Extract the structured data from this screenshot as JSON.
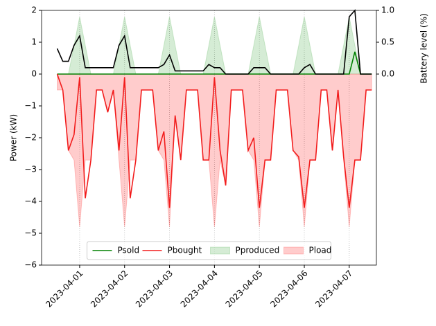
{
  "chart_data": {
    "type": "line",
    "ylabel": "Power (kW)",
    "y2label": "Battery level (%)",
    "x": [
      "2023-03-31T12:00",
      "2023-03-31T15:00",
      "2023-03-31T18:00",
      "2023-03-31T21:00",
      "2023-04-01T00:00",
      "2023-04-01T03:00",
      "2023-04-01T06:00",
      "2023-04-01T09:00",
      "2023-04-01T12:00",
      "2023-04-01T15:00",
      "2023-04-01T18:00",
      "2023-04-01T21:00",
      "2023-04-02T00:00",
      "2023-04-02T03:00",
      "2023-04-02T06:00",
      "2023-04-02T09:00",
      "2023-04-02T12:00",
      "2023-04-02T15:00",
      "2023-04-02T18:00",
      "2023-04-02T21:00",
      "2023-04-03T00:00",
      "2023-04-03T03:00",
      "2023-04-03T06:00",
      "2023-04-03T09:00",
      "2023-04-03T12:00",
      "2023-04-03T15:00",
      "2023-04-03T18:00",
      "2023-04-03T21:00",
      "2023-04-04T00:00",
      "2023-04-04T03:00",
      "2023-04-04T06:00",
      "2023-04-04T09:00",
      "2023-04-04T12:00",
      "2023-04-04T15:00",
      "2023-04-04T18:00",
      "2023-04-04T21:00",
      "2023-04-05T00:00",
      "2023-04-05T03:00",
      "2023-04-05T06:00",
      "2023-04-05T09:00",
      "2023-04-05T12:00",
      "2023-04-05T15:00",
      "2023-04-05T18:00",
      "2023-04-05T21:00",
      "2023-04-06T00:00",
      "2023-04-06T03:00",
      "2023-04-06T06:00",
      "2023-04-06T09:00",
      "2023-04-06T12:00",
      "2023-04-06T15:00",
      "2023-04-06T18:00",
      "2023-04-06T21:00",
      "2023-04-07T00:00",
      "2023-04-07T03:00",
      "2023-04-07T06:00",
      "2023-04-07T09:00",
      "2023-04-07T12:00"
    ],
    "xlim": [
      "2023-03-31T03:40",
      "2023-04-07T14:30"
    ],
    "xticks": [
      "2023-04-01",
      "2023-04-02",
      "2023-04-03",
      "2023-04-04",
      "2023-04-05",
      "2023-04-06",
      "2023-04-07"
    ],
    "xgrid": true,
    "ylim": [
      -6,
      2
    ],
    "yticks": [
      {
        "value": -6,
        "label": "−6"
      },
      {
        "value": -5,
        "label": "−5"
      },
      {
        "value": -4,
        "label": "−4"
      },
      {
        "value": -3,
        "label": "−3"
      },
      {
        "value": -2,
        "label": "−2"
      },
      {
        "value": -1,
        "label": "−1"
      },
      0,
      1,
      2
    ],
    "y2lim": [
      -3,
      1
    ],
    "y2ticks": [
      {
        "value": 0,
        "label": "0.0"
      },
      {
        "value": 0.5,
        "label": "0.5"
      },
      {
        "value": 1,
        "label": "1.0"
      }
    ],
    "legend": "lower center",
    "series": [
      {
        "name": "Psold",
        "color": "#008000",
        "style": "line",
        "values": [
          0,
          0,
          0,
          0,
          0,
          0,
          0,
          0,
          0,
          0,
          0,
          0,
          0,
          0,
          0,
          0,
          0,
          0,
          0,
          0,
          0,
          0,
          0,
          0,
          0,
          0,
          0,
          0,
          0,
          0,
          0,
          0,
          0,
          0,
          0,
          0,
          0,
          0,
          0,
          0,
          0,
          0,
          0,
          0,
          0,
          0,
          0,
          0,
          0,
          0,
          0,
          0,
          0,
          0.7,
          0,
          0,
          0
        ]
      },
      {
        "name": "Pbought",
        "color": "#f21c1c",
        "style": "line",
        "values": [
          0,
          -0.5,
          -2.4,
          -1.9,
          -0.1,
          -3.9,
          -2.7,
          -0.5,
          -0.5,
          -1.2,
          -0.5,
          -2.4,
          -0.1,
          -3.9,
          -2.7,
          -0.5,
          -0.5,
          -0.5,
          -2.4,
          -1.8,
          -4.2,
          -1.3,
          -2.7,
          -0.5,
          -0.5,
          -0.5,
          -2.7,
          -2.7,
          -0.1,
          -2.4,
          -3.5,
          -0.5,
          -0.5,
          -0.5,
          -2.4,
          -2.0,
          -4.2,
          -2.7,
          -2.7,
          -0.5,
          -0.5,
          -0.5,
          -2.4,
          -2.6,
          -4.2,
          -2.7,
          -2.7,
          -0.5,
          -0.5,
          -2.4,
          -0.5,
          -2.6,
          -4.2,
          -2.7,
          -2.7,
          -0.5,
          -0.5
        ]
      },
      {
        "name": "Pproduced",
        "color": "#2ca02c",
        "style": "area",
        "values": [
          0,
          0,
          0,
          0.9,
          1.8,
          0.9,
          0,
          0,
          0,
          0,
          0,
          0.9,
          1.8,
          0.9,
          0,
          0,
          0,
          0,
          0,
          0.9,
          1.8,
          0.9,
          0,
          0,
          0,
          0,
          0,
          0.9,
          1.8,
          0.9,
          0,
          0,
          0,
          0,
          0,
          0.9,
          1.8,
          0.9,
          0,
          0,
          0,
          0,
          0,
          0.9,
          1.8,
          0.9,
          0,
          0,
          0,
          0,
          0,
          0.9,
          1.8,
          0.9,
          0,
          0,
          0
        ]
      },
      {
        "name": "Pload",
        "color": "#ff0000",
        "style": "area",
        "values": [
          -0.5,
          -0.5,
          -2.4,
          -2.7,
          -4.8,
          -2.7,
          -2.7,
          -0.5,
          -0.5,
          -1.2,
          -0.5,
          -2.7,
          -4.8,
          -2.7,
          -2.7,
          -0.5,
          -0.5,
          -0.5,
          -2.4,
          -2.7,
          -4.8,
          -1.3,
          -2.7,
          -0.5,
          -0.5,
          -0.5,
          -2.7,
          -2.7,
          -4.8,
          -2.7,
          -3.5,
          -0.5,
          -0.5,
          -0.5,
          -2.4,
          -2.7,
          -4.8,
          -2.7,
          -2.7,
          -0.5,
          -0.5,
          -0.5,
          -2.4,
          -2.7,
          -4.8,
          -2.7,
          -2.7,
          -0.5,
          -0.5,
          -2.4,
          -0.5,
          -2.7,
          -4.8,
          -2.7,
          -2.7,
          -0.5,
          -0.5
        ]
      },
      {
        "color": "#000000",
        "style": "line",
        "axis": "y2",
        "values": [
          0.4,
          0.2,
          0.2,
          0.45,
          0.6,
          0.1,
          0.1,
          0.1,
          0.1,
          0.1,
          0.1,
          0.45,
          0.6,
          0.1,
          0.1,
          0.1,
          0.1,
          0.1,
          0.1,
          0.15,
          0.3,
          0.05,
          0.05,
          0.05,
          0.05,
          0.05,
          0.05,
          0.15,
          0.1,
          0.1,
          0,
          0,
          0,
          0,
          0,
          0.1,
          0.1,
          0.1,
          0,
          0,
          0,
          0,
          0,
          0,
          0.1,
          0.15,
          0,
          0,
          0,
          0,
          0,
          0,
          0.9,
          1.0,
          0,
          0,
          0
        ]
      }
    ]
  }
}
